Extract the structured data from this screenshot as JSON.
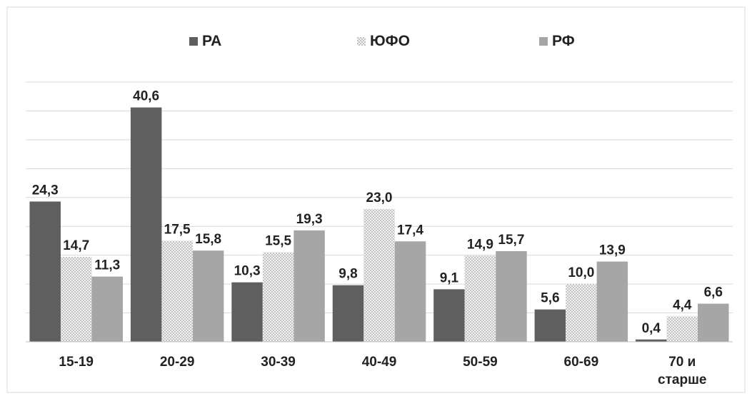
{
  "chart_data": {
    "type": "bar",
    "categories": [
      "15-19",
      "20-29",
      "30-39",
      "40-49",
      "50-59",
      "60-69",
      "70 и старше"
    ],
    "category_lines": [
      [
        "15-19"
      ],
      [
        "20-29"
      ],
      [
        "30-39"
      ],
      [
        "40-49"
      ],
      [
        "50-59"
      ],
      [
        "60-69"
      ],
      [
        "70 и",
        "старше"
      ]
    ],
    "series": [
      {
        "name": "РА",
        "values": [
          24.3,
          40.6,
          10.3,
          9.8,
          9.1,
          5.6,
          0.4
        ],
        "labels": [
          "24,3",
          "40,6",
          "10,3",
          "9,8",
          "9,1",
          "5,6",
          "0,4"
        ],
        "color": "#5f5f5f",
        "pattern": "solid"
      },
      {
        "name": "ЮФО",
        "values": [
          14.7,
          17.5,
          15.5,
          23.0,
          14.9,
          10.0,
          4.4
        ],
        "labels": [
          "14,7",
          "17,5",
          "15,5",
          "23,0",
          "14,9",
          "10,0",
          "4,4"
        ],
        "color": "#e2e2e2",
        "pattern": "dotted"
      },
      {
        "name": "РФ",
        "values": [
          11.3,
          15.8,
          19.3,
          17.4,
          15.7,
          13.9,
          6.6
        ],
        "labels": [
          "11,3",
          "15,8",
          "19,3",
          "17,4",
          "15,7",
          "13,9",
          "6,6"
        ],
        "color": "#a6a6a6",
        "pattern": "solid"
      }
    ],
    "ylim": [
      0,
      45
    ],
    "gridlines": true,
    "legend_position": "top",
    "title": "",
    "xlabel": "",
    "ylabel": ""
  }
}
